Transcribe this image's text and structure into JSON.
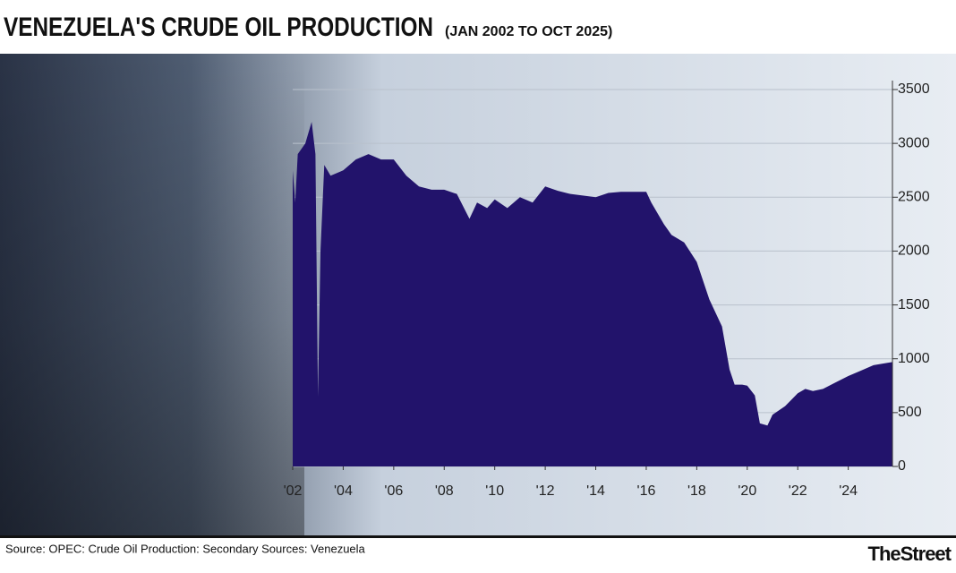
{
  "chart_data": {
    "type": "area",
    "title": "VENEZUELA'S CRUDE OIL PRODUCTION",
    "subtitle": "(JAN 2002 TO OCT 2025)",
    "source": "Source: OPEC: Crude Oil Production: Secondary Sources: Venezuela",
    "brand": "TheStreet",
    "color": "#22136b",
    "grid": true,
    "x": [
      2002.0,
      2002.1,
      2002.2,
      2002.5,
      2002.75,
      2002.9,
      2003.0,
      2003.1,
      2003.25,
      2003.5,
      2004.0,
      2004.5,
      2005.0,
      2005.5,
      2006.0,
      2006.5,
      2007.0,
      2007.5,
      2008.0,
      2008.5,
      2009.0,
      2009.3,
      2009.7,
      2010.0,
      2010.5,
      2011.0,
      2011.5,
      2012.0,
      2012.5,
      2013.0,
      2014.0,
      2014.5,
      2015.0,
      2016.0,
      2016.2,
      2016.7,
      2017.0,
      2017.5,
      2018.0,
      2018.5,
      2019.0,
      2019.3,
      2019.5,
      2019.8,
      2020.0,
      2020.3,
      2020.5,
      2020.8,
      2021.0,
      2021.5,
      2022.0,
      2022.3,
      2022.6,
      2023.0,
      2023.5,
      2024.0,
      2024.5,
      2025.0,
      2025.5,
      2025.75
    ],
    "values": [
      2750,
      2450,
      2900,
      3000,
      3200,
      2900,
      650,
      2000,
      2800,
      2700,
      2750,
      2850,
      2900,
      2850,
      2850,
      2700,
      2600,
      2570,
      2570,
      2530,
      2300,
      2450,
      2400,
      2480,
      2400,
      2500,
      2450,
      2600,
      2560,
      2530,
      2500,
      2540,
      2550,
      2550,
      2450,
      2250,
      2150,
      2080,
      1900,
      1550,
      1300,
      900,
      760,
      760,
      750,
      660,
      400,
      380,
      480,
      560,
      680,
      720,
      700,
      720,
      780,
      840,
      890,
      940,
      960,
      970
    ],
    "xlim": [
      2002,
      2025.75
    ],
    "xticks": [
      {
        "value": 2002,
        "label": "'02"
      },
      {
        "value": 2004,
        "label": "'04"
      },
      {
        "value": 2006,
        "label": "'06"
      },
      {
        "value": 2008,
        "label": "'08"
      },
      {
        "value": 2010,
        "label": "'10"
      },
      {
        "value": 2012,
        "label": "'12"
      },
      {
        "value": 2014,
        "label": "'14"
      },
      {
        "value": 2016,
        "label": "'16"
      },
      {
        "value": 2018,
        "label": "'18"
      },
      {
        "value": 2020,
        "label": "'20"
      },
      {
        "value": 2022,
        "label": "'22"
      },
      {
        "value": 2024,
        "label": "'24"
      }
    ],
    "ylim": [
      0,
      3500
    ],
    "yticks": [
      0,
      500,
      1000,
      1500,
      2000,
      2500,
      3000,
      3500
    ]
  }
}
